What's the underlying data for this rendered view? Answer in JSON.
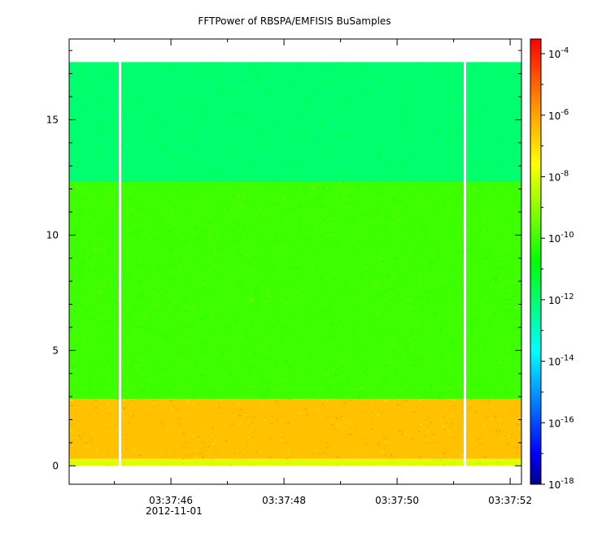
{
  "chart_data": {
    "type": "heatmap",
    "title": "FFTPower of RBSPA/EMFISIS  BuSamples",
    "xlabel": "",
    "ylabel": "",
    "x_start": "03:37:44.2",
    "x_end": "03:37:52.2",
    "x_ticks": [
      {
        "value": "03:37:46",
        "label": "03:37:46"
      },
      {
        "value": "03:37:48",
        "label": "03:37:48"
      },
      {
        "value": "03:37:50",
        "label": "03:37:50"
      },
      {
        "value": "03:37:52",
        "label": "03:37:52"
      }
    ],
    "x_date_label": "2012-11-01",
    "ylim": [
      -0.8,
      18.5
    ],
    "y_ticks": [
      0,
      5,
      10,
      15
    ],
    "grid": false,
    "colorbar": {
      "scale": "log",
      "range": [
        1e-18,
        0.0003
      ],
      "ticks": [
        {
          "value": 0.0001,
          "base": "10",
          "exp": "-4"
        },
        {
          "value": 1e-06,
          "base": "10",
          "exp": "-6"
        },
        {
          "value": 1e-08,
          "base": "10",
          "exp": "-8"
        },
        {
          "value": 1e-10,
          "base": "10",
          "exp": "-10"
        },
        {
          "value": 1e-12,
          "base": "10",
          "exp": "-12"
        },
        {
          "value": 1e-14,
          "base": "10",
          "exp": "-14"
        },
        {
          "value": 1e-16,
          "base": "10",
          "exp": "-16"
        },
        {
          "value": 1e-18,
          "base": "10",
          "exp": "-18"
        }
      ],
      "colors": [
        "#00008f",
        "#0000ff",
        "#00ffff",
        "#00ff00",
        "#ffff00",
        "#ff8000",
        "#ff0000"
      ]
    },
    "data_y_range": [
      0,
      17.5
    ],
    "bands": [
      {
        "y_min": 0.0,
        "y_max": 0.3,
        "level": 1e-08,
        "description_color": "#ffff00"
      },
      {
        "y_min": 0.3,
        "y_max": 2.9,
        "level": 3e-07,
        "description_color": "#ff7000"
      },
      {
        "y_min": 2.9,
        "y_max": 12.3,
        "level": 1e-10,
        "description_color": "#40f000"
      },
      {
        "y_min": 12.3,
        "y_max": 17.5,
        "level": 1e-12,
        "description_color": "#00f080"
      }
    ],
    "data_gaps": [
      "03:37:45.1",
      "03:37:51.2"
    ]
  }
}
